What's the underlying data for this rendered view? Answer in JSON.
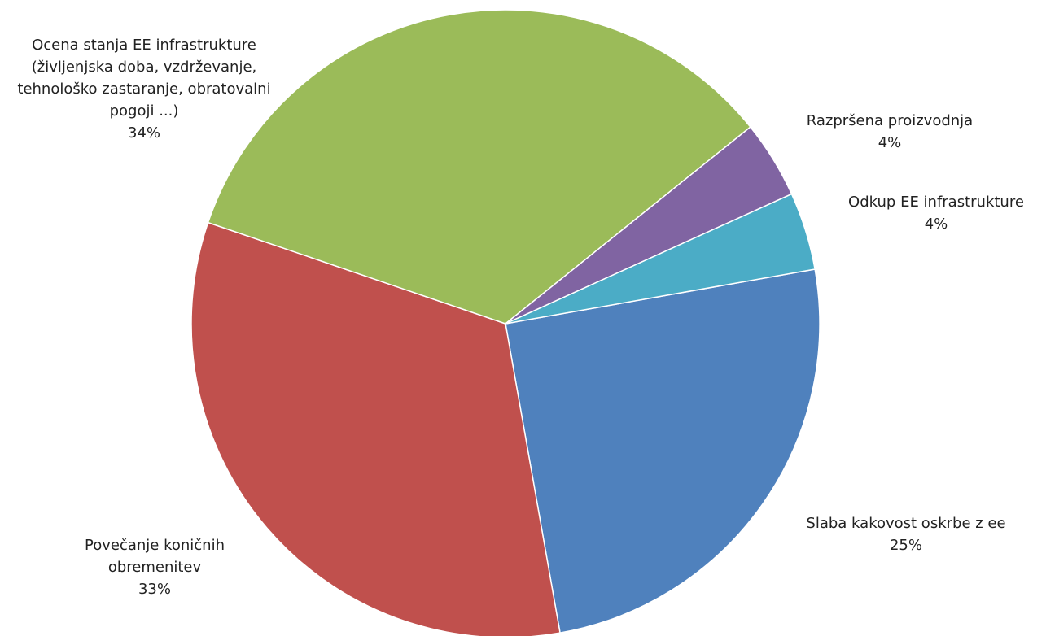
{
  "chart_data": {
    "type": "pie",
    "categories": [
      "Slaba kakovost oskrbe z ee",
      "Povečanje koničnih obremenitev",
      "Ocena stanja EE infrastrukture (življenjska doba, vzdrževanje, tehnološko zastaranje, obratovalni pogoji ...)",
      "Razpršena proizvodnja",
      "Odkup EE infrastrukture"
    ],
    "values": [
      25,
      33,
      34,
      4,
      4
    ],
    "value_labels": [
      "25%",
      "33%",
      "34%",
      "4%",
      "4%"
    ],
    "colors": [
      "#4f81bd",
      "#c0504d",
      "#9bbb59",
      "#8064a2",
      "#4bacc6"
    ]
  }
}
